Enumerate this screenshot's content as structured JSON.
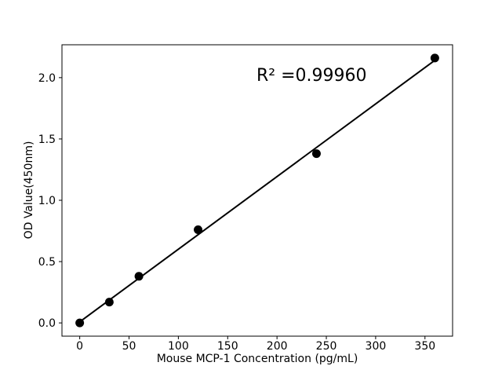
{
  "figure": {
    "background_color": "#ffffff",
    "foreground_color": "#000000"
  },
  "chart_data": {
    "type": "scatter",
    "title": "",
    "xlabel": "Mouse MCP-1 Concentration (pg/mL)",
    "ylabel": "OD Value(450nm)",
    "x": [
      0,
      30,
      60,
      120,
      240,
      360
    ],
    "y": [
      0.0,
      0.17,
      0.38,
      0.76,
      1.38,
      2.16
    ],
    "fit_line": {
      "slope": 0.005924,
      "intercept": 0.0086,
      "x_start": 0,
      "x_end": 360
    },
    "annotation": {
      "text": "R² =0.99960",
      "r_squared": 0.9996
    },
    "x_ticks": [
      "0",
      "50",
      "100",
      "150",
      "200",
      "250",
      "300",
      "350"
    ],
    "y_ticks": [
      "0.0",
      "0.5",
      "1.0",
      "1.5",
      "2.0"
    ],
    "xlim": [
      -18,
      378
    ],
    "ylim": [
      -0.108,
      2.268
    ],
    "grid": false,
    "legend": null,
    "marker_color": "#000000",
    "line_color": "#000000"
  }
}
